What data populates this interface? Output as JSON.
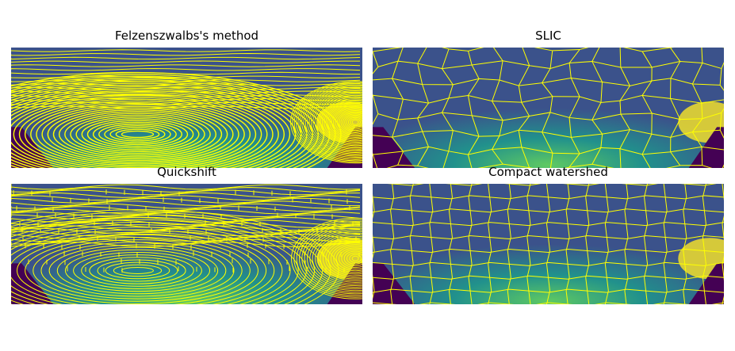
{
  "figure": {
    "panels": [
      {
        "id": "felzenszwalb",
        "title": "Felzenszwalbs's method",
        "boundary_color": "#ffff00",
        "style": "contours"
      },
      {
        "id": "slic",
        "title": "SLIC",
        "boundary_color": "#ffff00",
        "style": "superpixels"
      },
      {
        "id": "quickshift",
        "title": "Quickshift",
        "boundary_color": "#ffff00",
        "style": "dense"
      },
      {
        "id": "compact-watershed",
        "title": "Compact watershed",
        "boundary_color": "#ffff00",
        "style": "grid"
      }
    ],
    "colormap": [
      "#440154",
      "#3b528b",
      "#21918c",
      "#5ec962",
      "#fde725"
    ]
  }
}
